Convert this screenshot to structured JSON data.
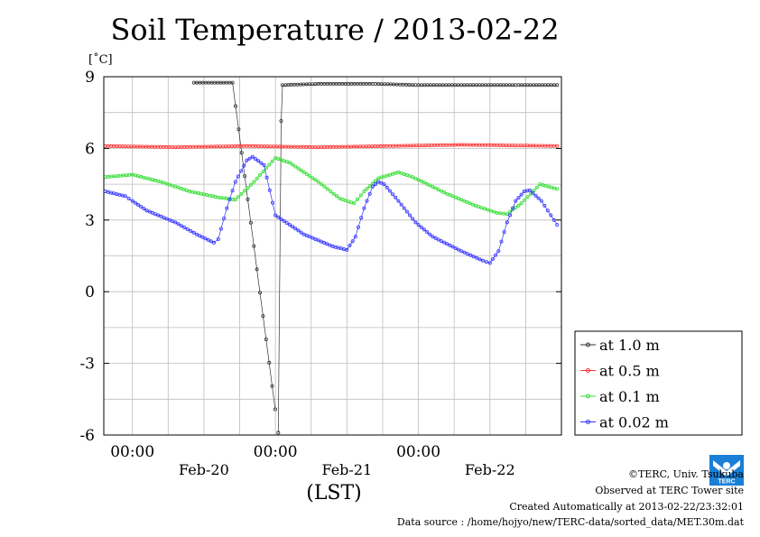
{
  "page": {
    "title": "Soil Temperature / 2013-02-22",
    "footer": {
      "copyright": "©TERC, Univ. Tsukuba",
      "observed": "Observed at TERC Tower site",
      "created": "Created Automatically at 2013-02-22/23:32:01",
      "source": "Data source : /home/hojyo/new/TERC-data/sorted_data/MET.30m.dat"
    },
    "logo_label": "TERC"
  },
  "chart_data": {
    "type": "line",
    "title": "Soil Temperature / 2013-02-22",
    "ylabel": "[˚C]",
    "xlabel": "(LST)",
    "ylim": [
      -6,
      9
    ],
    "yticks": [
      9,
      6,
      3,
      0,
      -3,
      -6
    ],
    "xlim": [
      -0.2,
      3.0
    ],
    "x_units": "days since 2013-02-19 00:00 LST",
    "xtick_labels": [
      {
        "x": 0,
        "label": "00:00"
      },
      {
        "x": 1,
        "label": "00:00"
      },
      {
        "x": 2,
        "label": "00:00"
      }
    ],
    "date_labels": [
      {
        "x": 0.5,
        "label": "Feb-20"
      },
      {
        "x": 1.5,
        "label": "Feb-21"
      },
      {
        "x": 2.5,
        "label": "Feb-22"
      }
    ],
    "grid": true,
    "legend_position": "right",
    "series": [
      {
        "name": "at 1.0 m",
        "color": "#333333",
        "points": [
          [
            0.43,
            8.75
          ],
          [
            0.7,
            8.75
          ],
          [
            1.02,
            -5.9
          ],
          [
            1.04,
            7.15
          ],
          [
            1.05,
            8.65
          ],
          [
            1.3,
            8.7
          ],
          [
            1.7,
            8.7
          ],
          [
            2.0,
            8.65
          ],
          [
            2.3,
            8.65
          ],
          [
            2.7,
            8.65
          ],
          [
            2.97,
            8.65
          ]
        ],
        "gaps_after": [
          0.7,
          1.3,
          1.7,
          2.3
        ]
      },
      {
        "name": "at 0.5 m",
        "color": "#ff3333",
        "points": [
          [
            -0.19,
            6.1
          ],
          [
            0.3,
            6.05
          ],
          [
            0.8,
            6.1
          ],
          [
            1.3,
            6.05
          ],
          [
            1.8,
            6.1
          ],
          [
            2.3,
            6.15
          ],
          [
            2.97,
            6.1
          ]
        ]
      },
      {
        "name": "at 0.1 m",
        "color": "#33dd33",
        "points": [
          [
            -0.19,
            4.8
          ],
          [
            0.0,
            4.9
          ],
          [
            0.2,
            4.6
          ],
          [
            0.4,
            4.2
          ],
          [
            0.6,
            3.95
          ],
          [
            0.72,
            3.85
          ],
          [
            0.85,
            4.6
          ],
          [
            1.0,
            5.6
          ],
          [
            1.1,
            5.4
          ],
          [
            1.3,
            4.6
          ],
          [
            1.45,
            3.9
          ],
          [
            1.55,
            3.7
          ],
          [
            1.62,
            4.2
          ],
          [
            1.72,
            4.75
          ],
          [
            1.86,
            5.0
          ],
          [
            1.96,
            4.8
          ],
          [
            2.2,
            4.1
          ],
          [
            2.4,
            3.6
          ],
          [
            2.55,
            3.3
          ],
          [
            2.62,
            3.25
          ],
          [
            2.72,
            3.7
          ],
          [
            2.85,
            4.5
          ],
          [
            2.97,
            4.3
          ]
        ]
      },
      {
        "name": "at 0.02 m",
        "color": "#3333ff",
        "points": [
          [
            -0.19,
            4.2
          ],
          [
            -0.05,
            4.0
          ],
          [
            0.0,
            3.8
          ],
          [
            0.1,
            3.4
          ],
          [
            0.3,
            2.9
          ],
          [
            0.45,
            2.4
          ],
          [
            0.57,
            2.05
          ],
          [
            0.6,
            2.2
          ],
          [
            0.66,
            3.5
          ],
          [
            0.72,
            4.6
          ],
          [
            0.8,
            5.5
          ],
          [
            0.84,
            5.65
          ],
          [
            0.92,
            5.3
          ],
          [
            1.0,
            3.2
          ],
          [
            1.2,
            2.4
          ],
          [
            1.4,
            1.9
          ],
          [
            1.5,
            1.75
          ],
          [
            1.56,
            2.3
          ],
          [
            1.62,
            3.5
          ],
          [
            1.68,
            4.4
          ],
          [
            1.72,
            4.6
          ],
          [
            1.76,
            4.5
          ],
          [
            1.86,
            3.8
          ],
          [
            1.98,
            2.9
          ],
          [
            2.1,
            2.3
          ],
          [
            2.3,
            1.7
          ],
          [
            2.45,
            1.3
          ],
          [
            2.5,
            1.2
          ],
          [
            2.56,
            1.7
          ],
          [
            2.62,
            2.9
          ],
          [
            2.68,
            3.8
          ],
          [
            2.74,
            4.2
          ],
          [
            2.78,
            4.25
          ],
          [
            2.86,
            3.8
          ],
          [
            2.97,
            2.8
          ]
        ]
      }
    ]
  }
}
